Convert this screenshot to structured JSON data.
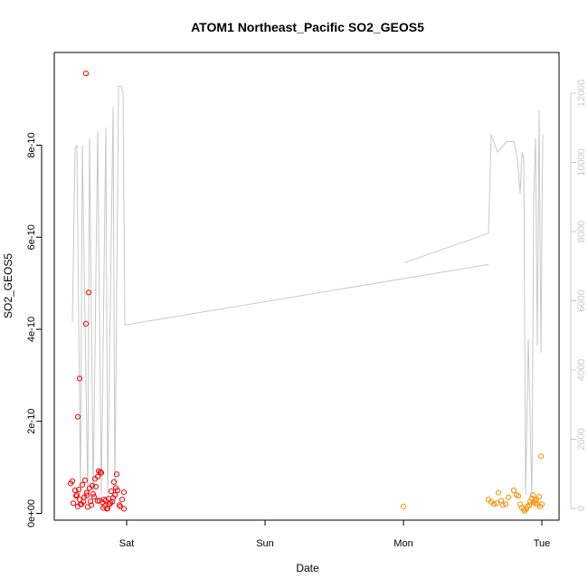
{
  "chart_data": {
    "type": "scatter",
    "title": "ATOM1 Northeast_Pacific SO2_GEOS5",
    "xlabel": "Date",
    "ylabel": "SO2_GEOS5",
    "x_ticks": [
      "Sat",
      "Sun",
      "Mon",
      "Tue"
    ],
    "y_ticks": [
      "0e+00",
      "2e-10",
      "4e-10",
      "6e-10",
      "8e-10"
    ],
    "y_right_ticks": [
      "0",
      "2000",
      "4000",
      "6000",
      "8000",
      "10000",
      "12000"
    ],
    "x_range": [
      "Sat",
      "Tue"
    ],
    "y_range": [
      0,
      9.6e-10
    ],
    "y_right_range": [
      0,
      12000
    ],
    "series": [
      {
        "color": "#ff0000",
        "points": [
          {
            "x": "Sat",
            "y": 6.5e-11
          },
          {
            "x": "Sat",
            "y": 7e-11
          },
          {
            "x": "Sat",
            "y": 5e-11
          },
          {
            "x": "Sat",
            "y": 4e-11
          },
          {
            "x": "Sat",
            "y": 3e-11
          },
          {
            "x": "Sat",
            "y": 2.5e-11
          },
          {
            "x": "Sat",
            "y": 9.56e-10
          },
          {
            "x": "Sat",
            "y": 4.8e-10
          },
          {
            "x": "Sat",
            "y": 2.1e-10
          },
          {
            "x": "Sat",
            "y": 2.93e-10
          },
          {
            "x": "Sat",
            "y": 4.12e-10
          },
          {
            "x": "Sat",
            "y": 1e-11
          },
          {
            "x": "Sat",
            "y": 1.5e-11
          },
          {
            "x": "Sat",
            "y": 2e-11
          },
          {
            "x": "Sat",
            "y": 3.5e-11
          },
          {
            "x": "Sat",
            "y": 4.5e-11
          },
          {
            "x": "Sat",
            "y": 5.5e-11
          },
          {
            "x": "Sat",
            "y": 6e-11
          },
          {
            "x": "Sat",
            "y": 7.5e-11
          },
          {
            "x": "Sat",
            "y": 8e-11
          },
          {
            "x": "Sat",
            "y": 9e-11
          },
          {
            "x": "Sat",
            "y": 1.2e-11
          },
          {
            "x": "Sat",
            "y": 2.8e-11
          },
          {
            "x": "Sat",
            "y": 3.2e-11
          },
          {
            "x": "Sat",
            "y": 4.8e-11
          },
          {
            "x": "Sat",
            "y": 6.8e-11
          },
          {
            "x": "Sat",
            "y": 8.5e-11
          },
          {
            "x": "Sat",
            "y": 1.8e-11
          },
          {
            "x": "Sat",
            "y": 2.2e-11
          },
          {
            "x": "Sat",
            "y": 3.8e-11
          },
          {
            "x": "Sat",
            "y": 5.2e-11
          },
          {
            "x": "Sat",
            "y": 6.2e-11
          },
          {
            "x": "Sat",
            "y": 7.2e-11
          },
          {
            "x": "Sat",
            "y": 1.4e-11
          },
          {
            "x": "Sat",
            "y": 2.6e-11
          },
          {
            "x": "Sat",
            "y": 4.2e-11
          },
          {
            "x": "Sat",
            "y": 5.8e-11
          },
          {
            "x": "Sat",
            "y": 9.2e-11
          },
          {
            "x": "Sat",
            "y": 8.8e-11
          },
          {
            "x": "Sat",
            "y": 3e-11
          },
          {
            "x": "Sat",
            "y": 1e-11
          },
          {
            "x": "Sat",
            "y": 2e-11
          },
          {
            "x": "Sat",
            "y": 2.5e-11
          },
          {
            "x": "Sat",
            "y": 4e-11
          },
          {
            "x": "Sat",
            "y": 5e-11
          },
          {
            "x": "Sat",
            "y": 1.5e-11
          },
          {
            "x": "Sat",
            "y": 3e-11
          },
          {
            "x": "Sat",
            "y": 2e-11
          },
          {
            "x": "Sat",
            "y": 1.8e-11
          },
          {
            "x": "Sat",
            "y": 2.4e-11
          },
          {
            "x": "Sat",
            "y": 3.4e-11
          },
          {
            "x": "Sat",
            "y": 4.6e-11
          },
          {
            "x": "Sat",
            "y": 3.6e-11
          },
          {
            "x": "Sat",
            "y": 2.8e-11
          },
          {
            "x": "Sat",
            "y": 1.6e-11
          },
          {
            "x": "Sat",
            "y": 2.3e-11
          },
          {
            "x": "Sat",
            "y": 5.5e-11
          },
          {
            "x": "Sat",
            "y": 3.9e-11
          },
          {
            "x": "Sat",
            "y": 2.7e-11
          },
          {
            "x": "Sat",
            "y": 1.1e-11
          }
        ]
      },
      {
        "color": "#ff8c00",
        "points": [
          {
            "x": "Mon",
            "y": 1.5e-11
          },
          {
            "x": "Tue",
            "y": 3e-11
          },
          {
            "x": "Tue",
            "y": 2.5e-11
          },
          {
            "x": "Tue",
            "y": 2e-11
          },
          {
            "x": "Tue",
            "y": 2.2e-11
          },
          {
            "x": "Tue",
            "y": 4.5e-11
          },
          {
            "x": "Tue",
            "y": 2.8e-11
          },
          {
            "x": "Tue",
            "y": 1.8e-11
          },
          {
            "x": "Tue",
            "y": 2e-11
          },
          {
            "x": "Tue",
            "y": 3.5e-11
          },
          {
            "x": "Tue",
            "y": 5e-11
          },
          {
            "x": "Tue",
            "y": 4e-11
          },
          {
            "x": "Tue",
            "y": 3.8e-11
          },
          {
            "x": "Tue",
            "y": 2e-11
          },
          {
            "x": "Tue",
            "y": 1.2e-11
          },
          {
            "x": "Tue",
            "y": 8e-12
          },
          {
            "x": "Tue",
            "y": 5e-12
          },
          {
            "x": "Tue",
            "y": 1e-11
          },
          {
            "x": "Tue",
            "y": 1.5e-11
          },
          {
            "x": "Tue",
            "y": 1.8e-11
          },
          {
            "x": "Tue",
            "y": 2.5e-11
          },
          {
            "x": "Tue",
            "y": 3.2e-11
          },
          {
            "x": "Tue",
            "y": 4e-11
          },
          {
            "x": "Tue",
            "y": 2.8e-11
          },
          {
            "x": "Tue",
            "y": 2.2e-11
          },
          {
            "x": "Tue",
            "y": 1.9e-11
          },
          {
            "x": "Tue",
            "y": 3.6e-11
          },
          {
            "x": "Tue",
            "y": 1.24e-10
          },
          {
            "x": "Tue",
            "y": 2e-11
          },
          {
            "x": "Tue",
            "y": 1.5e-11
          },
          {
            "x": "Tue",
            "y": 3e-11
          },
          {
            "x": "Tue",
            "y": 2.4e-11
          }
        ]
      }
    ],
    "line_series": {
      "color": "#c8c8c8",
      "axis": "right",
      "values": [
        5400,
        10400,
        10500,
        400,
        10500,
        400,
        10700,
        400,
        10900,
        400,
        11000,
        400,
        11600,
        400,
        12200,
        12200,
        12000,
        5400,
        7100,
        7950,
        10800,
        10300,
        10600,
        10600,
        10100,
        9100,
        10300,
        10100,
        400,
        4900,
        300,
        9000,
        10700,
        4700,
        11500,
        4500,
        10800
      ]
    }
  }
}
